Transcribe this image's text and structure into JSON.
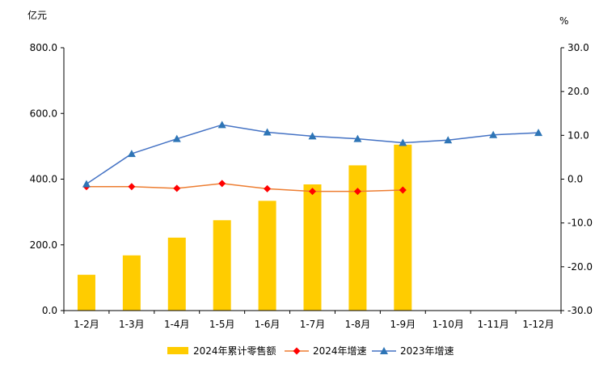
{
  "chart_data": {
    "type": "bar",
    "categories": [
      "1-2月",
      "1-3月",
      "1-4月",
      "1-5月",
      "1-6月",
      "1-7月",
      "1-8月",
      "1-9月",
      "1-10月",
      "1-11月",
      "1-12月"
    ],
    "left_axis": {
      "unit_label": "亿元",
      "ylim": [
        0,
        800
      ],
      "ticks": [
        "0.0",
        "200.0",
        "400.0",
        "600.0",
        "800.0"
      ]
    },
    "right_axis": {
      "unit_label": "%",
      "ylim": [
        -30,
        30
      ],
      "ticks": [
        "-30.0",
        "-20.0",
        "-10.0",
        "0.0",
        "10.0",
        "20.0",
        "30.0"
      ]
    },
    "series": [
      {
        "name": "2024年累计零售额",
        "type": "bar",
        "axis": "left",
        "color": "#FFCC00",
        "values": [
          109,
          168,
          222,
          275,
          334,
          384,
          442,
          505,
          null,
          null,
          null
        ]
      },
      {
        "name": "2024年增速",
        "type": "line",
        "axis": "right",
        "color": "#FF0000",
        "line_color": "#ED7D31",
        "marker": "diamond",
        "values": [
          -1.7,
          -1.7,
          -2.1,
          -1.0,
          -2.2,
          -2.8,
          -2.8,
          -2.5,
          null,
          null,
          null
        ]
      },
      {
        "name": "2023年增速",
        "type": "line",
        "axis": "right",
        "color": "#2E75B6",
        "line_color": "#4472C4",
        "marker": "triangle",
        "values": [
          -1.1,
          5.8,
          9.2,
          12.4,
          10.7,
          9.8,
          9.2,
          8.3,
          8.9,
          10.1,
          10.6
        ]
      }
    ],
    "legend_position": "bottom",
    "grid": false
  }
}
